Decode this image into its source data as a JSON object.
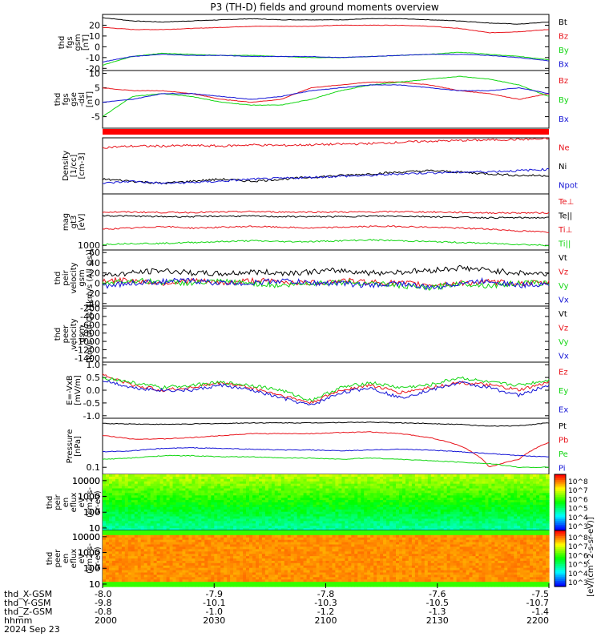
{
  "title": "P3 (TH-D) fields and ground moments overview",
  "colors": {
    "black": "#000000",
    "red": "#e8141c",
    "green": "#12d612",
    "blue": "#1414d6"
  },
  "colorbar_label": "[eV/(cm^2-s-sr-eV)]",
  "chart_data": [
    {
      "type": "line",
      "panel": "fgs",
      "ylabel": [
        "thd",
        "fgs",
        "gsm",
        "[nT]"
      ],
      "yticks": [
        "20",
        "10",
        "0",
        "-10",
        "-20"
      ],
      "ylim": [
        -22,
        30
      ],
      "series": [
        {
          "name": "Bt",
          "color": "black",
          "values": [
            27,
            24,
            23,
            24,
            25,
            26,
            25,
            25,
            25,
            26,
            26,
            25,
            24,
            22,
            21,
            23
          ]
        },
        {
          "name": "Bz",
          "color": "red",
          "values": [
            18,
            16,
            16,
            17,
            18,
            19,
            19,
            19,
            20,
            20,
            20,
            19,
            17,
            13,
            14,
            16
          ]
        },
        {
          "name": "By",
          "color": "green",
          "values": [
            -17,
            -9,
            -6,
            -7,
            -8,
            -8,
            -9,
            -10,
            -10,
            -9,
            -8,
            -7,
            -5,
            -7,
            -9,
            -12
          ]
        },
        {
          "name": "Bx",
          "color": "blue",
          "values": [
            -14,
            -9,
            -7,
            -8,
            -8,
            -9,
            -9,
            -9,
            -10,
            -9,
            -8,
            -7,
            -7,
            -8,
            -10,
            -13
          ]
        }
      ]
    },
    {
      "type": "line",
      "panel": "fgs-dsl",
      "ylabel": [
        "thd",
        "fgs",
        "gse",
        "-dsl",
        "[nT]"
      ],
      "yticks": [
        "10",
        "5",
        "0",
        "-5"
      ],
      "ylim": [
        -9,
        11
      ],
      "series": [
        {
          "name": "Bz",
          "color": "red",
          "values": [
            5,
            4,
            4,
            3,
            1,
            0,
            1,
            5,
            6,
            7,
            7,
            6,
            4,
            3,
            1,
            3
          ]
        },
        {
          "name": "By",
          "color": "green",
          "values": [
            -5,
            2,
            3,
            2,
            0,
            -1,
            -1,
            1,
            4,
            6,
            7,
            8,
            9,
            8,
            6,
            2
          ]
        },
        {
          "name": "Bx",
          "color": "blue",
          "values": [
            0,
            1,
            3,
            3,
            2,
            1,
            2,
            4,
            5,
            6,
            6,
            5,
            4,
            4,
            5,
            3
          ]
        }
      ]
    },
    {
      "type": "line",
      "panel": "density",
      "ylog": true,
      "ylabel": [
        "Density",
        "[1/cc]",
        "[cm-3]"
      ],
      "yticks": [],
      "ylim": [
        0.5,
        3.0
      ],
      "series": [
        {
          "name": "Ne",
          "color": "red",
          "values": [
            2.2,
            2.3,
            2.3,
            2.35,
            2.3,
            2.4,
            2.35,
            2.4,
            2.45,
            2.5,
            2.6,
            2.7,
            2.75,
            2.8,
            2.85,
            2.9
          ]
        },
        {
          "name": "Ni",
          "color": "black",
          "values": [
            0.8,
            0.75,
            0.7,
            0.75,
            0.8,
            0.75,
            0.8,
            0.85,
            0.9,
            0.95,
            1.0,
            1.05,
            1.0,
            0.95,
            0.9,
            0.9
          ]
        },
        {
          "name": "Npot",
          "color": "blue",
          "values": [
            0.7,
            0.75,
            0.7,
            0.72,
            0.75,
            0.8,
            0.82,
            0.85,
            0.88,
            0.9,
            0.95,
            0.98,
            1.0,
            1.02,
            1.05,
            1.1
          ]
        }
      ]
    },
    {
      "type": "line",
      "panel": "temperature",
      "ylog": true,
      "ylabel": [
        "mag",
        "gt3",
        "[eV]"
      ],
      "yticks": [
        "1000"
      ],
      "ylim": [
        800,
        12000
      ],
      "series": [
        {
          "name": "Te⊥",
          "color": "red",
          "values": [
            5000,
            5000,
            4900,
            4900,
            5000,
            5100,
            5000,
            5000,
            5000,
            5000,
            5100,
            5000,
            4900,
            4800,
            4800,
            4800
          ]
        },
        {
          "name": "Te||",
          "color": "black",
          "values": [
            4200,
            4100,
            4000,
            4000,
            4100,
            4100,
            4000,
            4000,
            4000,
            4100,
            4100,
            4000,
            3900,
            3800,
            3800,
            3800
          ]
        },
        {
          "name": "Ti⊥",
          "color": "red",
          "values": [
            2200,
            2300,
            2500,
            2300,
            2400,
            2500,
            2400,
            2300,
            2400,
            2500,
            2500,
            2400,
            2300,
            2200,
            2000,
            1900
          ]
        },
        {
          "name": "Ti||",
          "color": "green",
          "values": [
            1050,
            1100,
            1100,
            1150,
            1200,
            1250,
            1200,
            1200,
            1250,
            1300,
            1250,
            1200,
            1150,
            1100,
            1050,
            1000
          ]
        }
      ]
    },
    {
      "type": "line",
      "panel": "peir-velocity",
      "ylabel": [
        "thd",
        "peir",
        "velocity",
        "gsm",
        "[km/s (All Qs)]"
      ],
      "yticks": [
        "60",
        "40",
        "20",
        "0",
        "-20",
        "-40"
      ],
      "ylim": [
        -45,
        65
      ],
      "series": [
        {
          "name": "Vt",
          "color": "black",
          "values": [
            15,
            20,
            25,
            20,
            18,
            22,
            20,
            22,
            25,
            20,
            22,
            25,
            30,
            25,
            20,
            18
          ]
        },
        {
          "name": "Vz",
          "color": "red",
          "values": [
            5,
            5,
            0,
            5,
            0,
            5,
            3,
            0,
            5,
            2,
            0,
            -3,
            0,
            2,
            0,
            0
          ]
        },
        {
          "name": "Vy",
          "color": "green",
          "values": [
            0,
            5,
            2,
            0,
            3,
            0,
            -5,
            0,
            2,
            0,
            -5,
            -10,
            0,
            -5,
            0,
            0
          ]
        },
        {
          "name": "Vx",
          "color": "blue",
          "values": [
            -5,
            0,
            3,
            5,
            0,
            0,
            5,
            0,
            0,
            -5,
            0,
            -10,
            0,
            5,
            -5,
            0
          ]
        }
      ]
    },
    {
      "type": "line",
      "panel": "peer-velocity",
      "ylabel": [
        "thd",
        "peer",
        "velocity",
        "gsm",
        "[km/s (All Qs)]"
      ],
      "yticks": [
        "-200",
        "-400",
        "-600",
        "-800",
        "-1000",
        "-1200",
        "-1400"
      ],
      "ylim": [
        -1500,
        -150
      ],
      "series": [
        {
          "name": "Vt",
          "color": "black",
          "values": []
        },
        {
          "name": "Vz",
          "color": "red",
          "values": []
        },
        {
          "name": "Vy",
          "color": "green",
          "values": []
        },
        {
          "name": "Vx",
          "color": "blue",
          "values": []
        }
      ]
    },
    {
      "type": "line",
      "panel": "efield",
      "ylabel": [
        "E=-VxB",
        "[mV/m]"
      ],
      "yticks": [
        "1.0",
        "0.5",
        "0.0",
        "-0.5",
        "-1.0"
      ],
      "ylim": [
        -1.1,
        1.1
      ],
      "series": [
        {
          "name": "Ez",
          "color": "red",
          "values": [
            0.6,
            0.2,
            0.0,
            0.1,
            0.3,
            0.1,
            -0.2,
            -0.5,
            0.0,
            0.2,
            -0.1,
            0.1,
            0.3,
            0.2,
            0.0,
            0.3
          ]
        },
        {
          "name": "Ey",
          "color": "green",
          "values": [
            0.5,
            0.3,
            0.1,
            0.2,
            0.3,
            0.2,
            0.0,
            -0.4,
            0.1,
            0.3,
            0.1,
            0.2,
            0.5,
            0.3,
            0.2,
            0.4
          ]
        },
        {
          "name": "Ex",
          "color": "blue",
          "values": [
            0.4,
            0.1,
            0.0,
            0.0,
            0.2,
            0.0,
            -0.3,
            -0.6,
            -0.1,
            0.1,
            -0.3,
            0.0,
            0.3,
            0.1,
            -0.2,
            0.2
          ]
        }
      ]
    },
    {
      "type": "line",
      "panel": "pressure",
      "ylog": true,
      "ylabel": [
        "Pressure",
        "[nPa]"
      ],
      "yticks": [
        "0.1"
      ],
      "ylim": [
        0.07,
        1.2
      ],
      "series": [
        {
          "name": "Pt",
          "color": "black",
          "values": [
            0.92,
            0.9,
            0.88,
            0.9,
            0.92,
            0.95,
            0.95,
            0.95,
            0.97,
            0.98,
            0.95,
            0.92,
            0.88,
            0.8,
            0.82,
            0.95
          ]
        },
        {
          "name": "Pb",
          "color": "red",
          "values": [
            0.5,
            0.42,
            0.42,
            0.45,
            0.5,
            0.55,
            0.55,
            0.55,
            0.58,
            0.6,
            0.55,
            0.45,
            0.3,
            0.1,
            0.15,
            0.35
          ]
        },
        {
          "name": "Pe",
          "color": "green",
          "values": [
            0.15,
            0.16,
            0.18,
            0.18,
            0.17,
            0.17,
            0.16,
            0.16,
            0.15,
            0.16,
            0.15,
            0.14,
            0.13,
            0.12,
            0.1,
            0.1
          ]
        },
        {
          "name": "Pi",
          "color": "blue",
          "values": [
            0.22,
            0.23,
            0.26,
            0.27,
            0.26,
            0.25,
            0.24,
            0.24,
            0.23,
            0.24,
            0.25,
            0.24,
            0.22,
            0.2,
            0.18,
            0.17
          ]
        }
      ]
    },
    {
      "type": "heatmap",
      "panel": "peir-spectrogram",
      "ylabel": [
        "thd",
        "peir",
        "en",
        "eflux",
        "eV",
        "(cm2-s-",
        "sr-eV)"
      ],
      "yticks": [
        "10000",
        "1000",
        "100",
        "10"
      ],
      "ylim": [
        7,
        25000
      ],
      "ylog": true,
      "colorbar_ticks": [
        "10^8",
        "10^7",
        "10^6",
        "10^5",
        "10^4",
        "10^3"
      ]
    },
    {
      "type": "heatmap",
      "panel": "peer-spectrogram",
      "ylabel": [
        "thd",
        "peer",
        "en",
        "eflux",
        "eV",
        "(cm2-s-",
        "sr-eV)"
      ],
      "yticks": [
        "10000",
        "1000",
        "100",
        "10"
      ],
      "ylim": [
        7,
        25000
      ],
      "ylog": true,
      "colorbar_ticks": [
        "10^8",
        "10^7",
        "10^6",
        "10^5",
        "10^4",
        "10^3"
      ]
    }
  ],
  "x_axis": {
    "row_labels": [
      "thd_X-GSM",
      "thd_Y-GSM",
      "thd_Z-GSM",
      "hhmm",
      "2024 Sep 23"
    ],
    "columns": [
      [
        "-8.0",
        "-9.8",
        "-0.8",
        "2000"
      ],
      [
        "-7.9",
        "-10.1",
        "-1.0",
        "2030"
      ],
      [
        "-7.8",
        "-10.3",
        "-1.2",
        "2100"
      ],
      [
        "-7.6",
        "-10.5",
        "-1.3",
        "2130"
      ],
      [
        "-7.5",
        "-10.7",
        "-1.4",
        "2200"
      ]
    ]
  }
}
